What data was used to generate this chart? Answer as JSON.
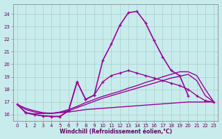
{
  "xlabel": "Windchill (Refroidissement éolien,°C)",
  "background_color": "#c8ecec",
  "grid_color": "#b0d0d0",
  "line_color": "#990099",
  "xlim": [
    -0.5,
    23.5
  ],
  "ylim": [
    15.5,
    24.8
  ],
  "yticks": [
    16,
    17,
    18,
    19,
    20,
    21,
    22,
    23,
    24
  ],
  "xticks": [
    0,
    1,
    2,
    3,
    4,
    5,
    6,
    7,
    8,
    9,
    10,
    11,
    12,
    13,
    14,
    15,
    16,
    17,
    18,
    19,
    20,
    21,
    22,
    23
  ],
  "lines": [
    {
      "x": [
        0,
        1,
        2,
        3,
        4,
        5,
        6,
        7,
        8,
        9,
        10,
        11,
        12,
        13,
        14,
        15,
        16,
        17,
        18,
        19,
        20
      ],
      "y": [
        16.8,
        16.15,
        16.0,
        15.9,
        15.85,
        15.85,
        16.3,
        18.6,
        17.2,
        17.55,
        20.3,
        21.6,
        23.1,
        24.1,
        24.2,
        23.3,
        21.9,
        20.6,
        19.5,
        19.1,
        17.5
      ],
      "marker": true,
      "linewidth": 1.2
    },
    {
      "x": [
        0,
        1,
        2,
        3,
        4,
        5,
        6,
        7,
        8,
        9,
        10,
        11,
        12,
        13,
        14,
        15,
        16,
        17,
        18,
        19,
        20,
        21,
        22,
        23
      ],
      "y": [
        16.8,
        16.15,
        16.05,
        16.1,
        16.1,
        16.15,
        16.2,
        16.3,
        16.4,
        16.45,
        16.5,
        16.55,
        16.6,
        16.65,
        16.7,
        16.75,
        16.8,
        16.85,
        16.9,
        16.95,
        17.0,
        17.0,
        17.0,
        17.0
      ],
      "marker": false,
      "linewidth": 1.0
    },
    {
      "x": [
        0,
        1,
        2,
        3,
        4,
        5,
        6,
        7,
        8,
        9,
        10,
        11,
        12,
        13,
        14,
        15,
        16,
        17,
        18,
        19,
        20,
        21,
        22,
        23
      ],
      "y": [
        16.8,
        16.4,
        16.2,
        16.1,
        16.1,
        16.15,
        16.3,
        16.55,
        16.8,
        17.05,
        17.3,
        17.5,
        17.7,
        17.9,
        18.1,
        18.3,
        18.5,
        18.7,
        18.9,
        19.05,
        19.2,
        18.7,
        17.5,
        17.0
      ],
      "marker": false,
      "linewidth": 1.0
    },
    {
      "x": [
        0,
        1,
        2,
        3,
        4,
        5,
        6,
        7,
        8,
        9,
        10,
        11,
        12,
        13,
        14,
        15,
        16,
        17,
        18,
        19,
        20,
        21,
        22,
        23
      ],
      "y": [
        16.8,
        16.5,
        16.3,
        16.15,
        16.1,
        16.2,
        16.4,
        16.65,
        16.95,
        17.2,
        17.45,
        17.65,
        17.85,
        18.1,
        18.3,
        18.55,
        18.75,
        19.0,
        19.2,
        19.4,
        19.4,
        19.1,
        18.0,
        17.0
      ],
      "marker": false,
      "linewidth": 1.0
    },
    {
      "x": [
        1,
        2,
        3,
        4,
        5,
        6,
        7,
        8,
        9,
        10,
        11,
        12,
        13,
        14,
        15,
        16,
        17,
        18,
        19,
        20,
        21,
        22,
        23
      ],
      "y": [
        16.15,
        16.0,
        15.9,
        15.85,
        15.85,
        16.3,
        18.6,
        17.2,
        17.55,
        18.6,
        19.1,
        19.3,
        19.5,
        19.3,
        19.1,
        18.9,
        18.7,
        18.5,
        18.3,
        18.0,
        17.5,
        17.1,
        17.0
      ],
      "marker": true,
      "linewidth": 1.0
    }
  ]
}
